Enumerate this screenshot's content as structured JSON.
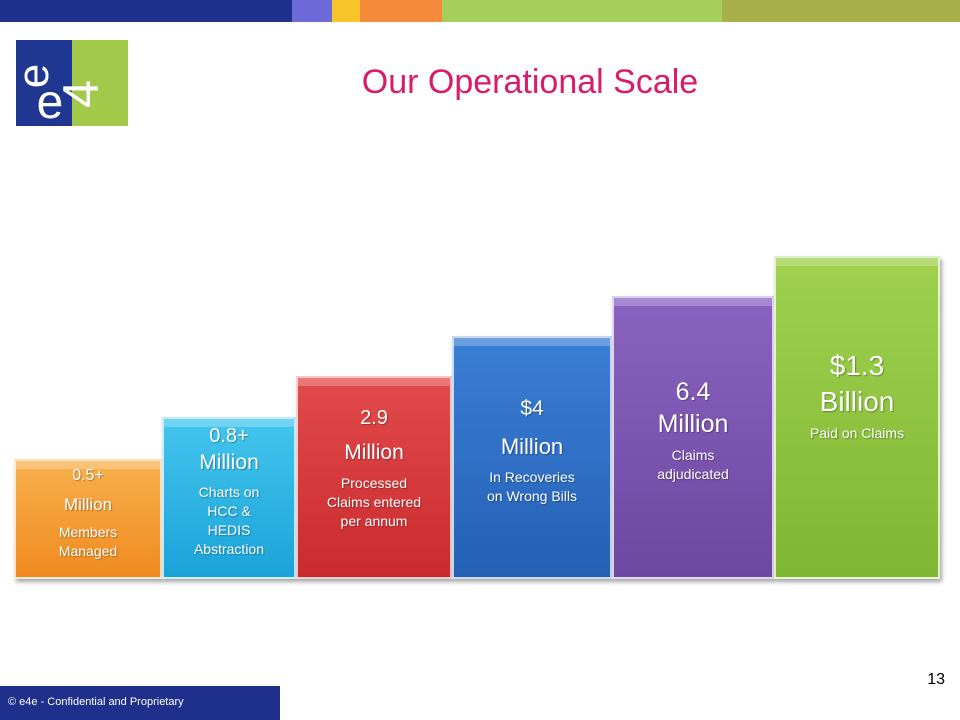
{
  "colors": {
    "title": "#d81b6a",
    "orange": "#f39a2a",
    "cyan": "#2fb6e6",
    "red": "#d9383b",
    "blue": "#2f6fc6",
    "purple": "#7c54b2",
    "green": "#8cc63f",
    "footer": "#1e2f8c"
  },
  "logo": {
    "text_e1": "e",
    "text_e2": "e",
    "text_4": "4"
  },
  "title": "Our Operational Scale",
  "blocks": [
    {
      "value": "0.5+",
      "unit": "Million",
      "desc": [
        "Members",
        "Managed"
      ]
    },
    {
      "value": "0.8+",
      "unit": "Million",
      "desc": [
        "Charts on",
        "HCC &",
        "HEDIS",
        "Abstraction"
      ]
    },
    {
      "value": "2.9",
      "unit": "Million",
      "desc": [
        "Processed",
        "Claims entered",
        "per annum"
      ]
    },
    {
      "value": "$4",
      "unit": "Million",
      "desc": [
        "In Recoveries",
        "on Wrong Bills"
      ]
    },
    {
      "value": "6.4",
      "unit": "Million",
      "desc": [
        "Claims",
        "adjudicated"
      ]
    },
    {
      "value": "$1.3",
      "unit": "Billion",
      "desc": [
        "Paid on Claims"
      ]
    }
  ],
  "footer": {
    "text": "© e4e - Confidential and Proprietary"
  },
  "page_number": "13"
}
